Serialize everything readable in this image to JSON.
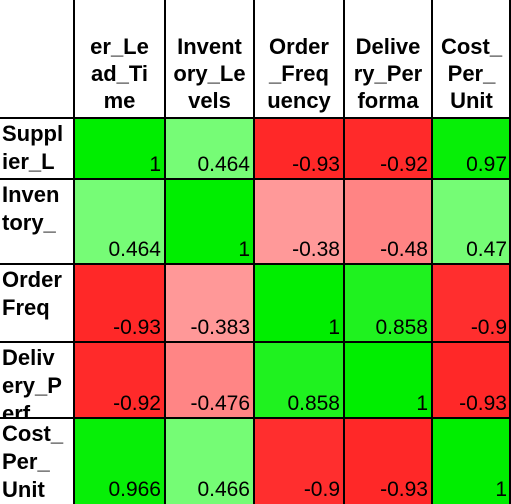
{
  "chart_data": {
    "type": "heatmap",
    "title": "",
    "columns": [
      [
        "er_Le",
        "ad_Ti",
        "me"
      ],
      [
        "Invent",
        "ory_Le",
        "vels"
      ],
      [
        "Order",
        "_Freq",
        "uency"
      ],
      [
        "Delive",
        "ry_Per",
        "forma"
      ],
      [
        "Cost_",
        "Per_",
        "Unit"
      ]
    ],
    "rows": [
      [
        "Suppl",
        "ier_L"
      ],
      [
        "Inven",
        "tory_"
      ],
      [
        "Order",
        "Freq"
      ],
      [
        "Deliv",
        "ery_P",
        "erf"
      ],
      [
        "Cost_",
        "Per_",
        "Unit"
      ]
    ],
    "display_values": [
      [
        "1",
        "0.464",
        "-0.93",
        "-0.92",
        "0.97"
      ],
      [
        "0.464",
        "1",
        "-0.38",
        "-0.48",
        "0.47"
      ],
      [
        "-0.93",
        "-0.383",
        "1",
        "0.858",
        "-0.9"
      ],
      [
        "-0.92",
        "-0.476",
        "0.858",
        "1",
        "-0.93"
      ],
      [
        "0.966",
        "0.466",
        "-0.9",
        "-0.93",
        "1"
      ]
    ],
    "values": [
      [
        1,
        0.464,
        -0.93,
        -0.92,
        0.97
      ],
      [
        0.464,
        1,
        -0.38,
        -0.48,
        0.47
      ],
      [
        -0.93,
        -0.383,
        1,
        0.858,
        -0.9
      ],
      [
        -0.92,
        -0.476,
        0.858,
        1,
        -0.93
      ],
      [
        0.966,
        0.466,
        -0.9,
        -0.93,
        1
      ]
    ],
    "color_scale": {
      "min": -1,
      "max": 1,
      "neg_color": "#ff1a1a",
      "pos_color": "#00ee00",
      "light_red": "#ff9f9f",
      "light_green": "#8fff8f"
    }
  }
}
